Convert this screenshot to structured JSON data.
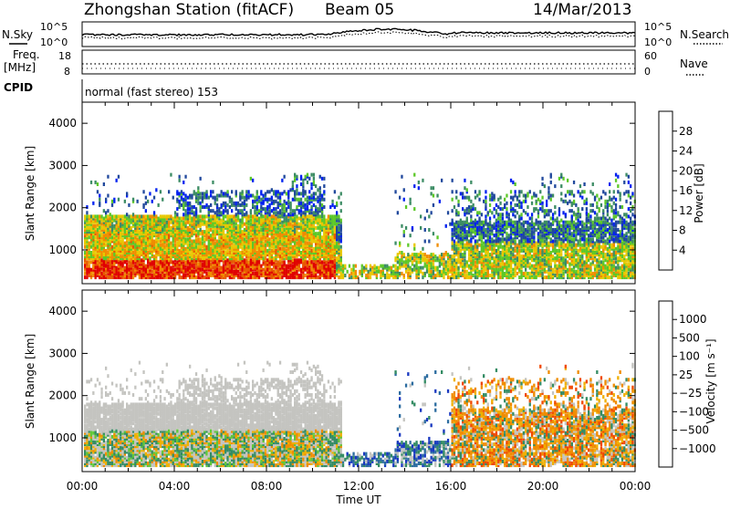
{
  "header": {
    "title": "Zhongshan Station (fitACF)",
    "beam": "Beam 05",
    "date": "14/Mar/2013",
    "cpid_label": "CPID",
    "cpid_text": "normal (fast stereo) 153"
  },
  "strip_panels": {
    "noise": {
      "left_label": "N.Sky",
      "right_label": "N.Search",
      "left_ticks": [
        "10^5",
        "10^0"
      ],
      "right_ticks": [
        "10^5",
        "10^0"
      ]
    },
    "freq": {
      "left_label_1": "Freq.",
      "left_label_2": "[MHz]",
      "right_label": "Nave",
      "left_ticks": [
        "18",
        "8"
      ],
      "right_ticks": [
        "60",
        "0"
      ]
    }
  },
  "chart_data": [
    {
      "type": "heatmap",
      "name": "Power",
      "ylabel": "Slant Range [km]",
      "xlabel": "Time UT",
      "ylim": [
        200,
        4500
      ],
      "xlim": [
        0,
        24
      ],
      "yticks": [
        "1000",
        "2000",
        "3000",
        "4000"
      ],
      "colorbar_label": "Power [dB]",
      "colorbar_ticks": [
        "28",
        "24",
        "20",
        "16",
        "12",
        "8",
        "4"
      ],
      "colors": [
        "#0020f0",
        "#20489c",
        "#3c8c64",
        "#5cc828",
        "#e8c800",
        "#f08c00",
        "#e85800",
        "#e00000"
      ]
    },
    {
      "type": "heatmap",
      "name": "Velocity",
      "ylabel": "Slant Range [km]",
      "xlabel": "Time UT",
      "ylim": [
        200,
        4500
      ],
      "xlim": [
        0,
        24
      ],
      "yticks": [
        "1000",
        "2000",
        "3000",
        "4000"
      ],
      "colorbar_label": "Velocity [m s⁻¹]",
      "colorbar_ticks": [
        "1000",
        "500",
        "100",
        "25",
        "−25",
        "−100",
        "−500",
        "−1000"
      ],
      "colors": [
        "#1838c0",
        "#2c6ca0",
        "#348c64",
        "#60c838",
        "#c4c4c0",
        "#f0b000",
        "#f08c00",
        "#f04800",
        "#e00000"
      ]
    }
  ],
  "x_axis": {
    "label": "Time UT",
    "ticks": [
      "00:00",
      "04:00",
      "08:00",
      "12:00",
      "16:00",
      "20:00",
      "00:00"
    ]
  }
}
